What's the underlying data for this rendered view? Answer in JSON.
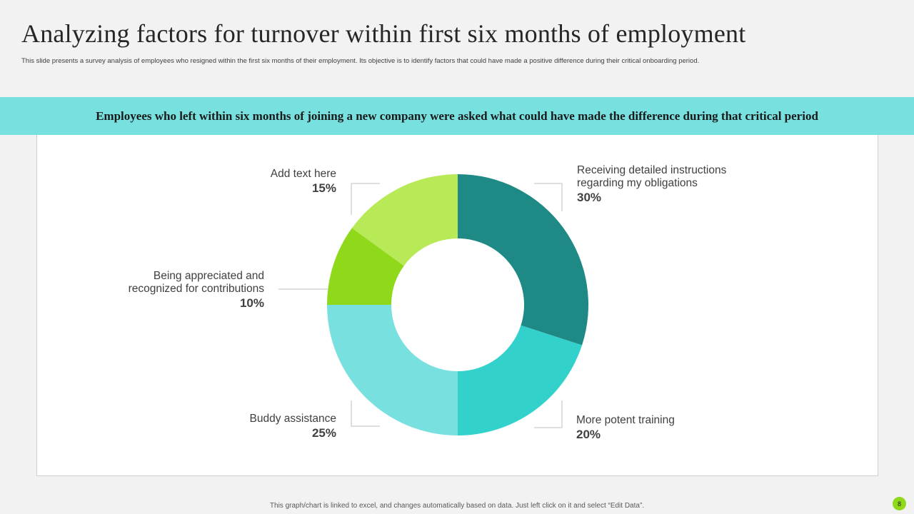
{
  "header": {
    "title": "Analyzing factors for turnover within first six months of employment",
    "subtitle": "This slide presents a survey analysis of employees who resigned within the first six months of their employment. Its objective is to identify factors that could have made a positive difference during their critical onboarding period."
  },
  "banner": {
    "text": "Employees who left within six months of joining a new company were asked what could have made the difference during that critical period",
    "color": "#79e0e0"
  },
  "chart_data": {
    "type": "pie",
    "donut": true,
    "categories": [
      "Receiving detailed instructions regarding my obligations",
      "More potent training",
      "Buddy assistance",
      "Being appreciated and recognized for contributions",
      "Add text here"
    ],
    "values": [
      30,
      20,
      25,
      10,
      15
    ],
    "value_labels": [
      "30%",
      "20%",
      "25%",
      "10%",
      "15%"
    ],
    "colors": [
      "#1f8a85",
      "#33d1cc",
      "#79e0e0",
      "#8fd91a",
      "#b8ea57"
    ],
    "label_lines": [
      [
        "Receiving detailed instructions",
        "regarding my obligations"
      ],
      [
        "More potent training"
      ],
      [
        "Buddy assistance"
      ],
      [
        "Being appreciated and",
        "recognized for contributions"
      ],
      [
        "Add text here"
      ]
    ]
  },
  "footer": {
    "note": "This graph/chart is linked to excel, and changes automatically based on data. Just left click on it and select “Edit Data”.",
    "page_number": "8",
    "badge_color": "#8fd91a"
  }
}
